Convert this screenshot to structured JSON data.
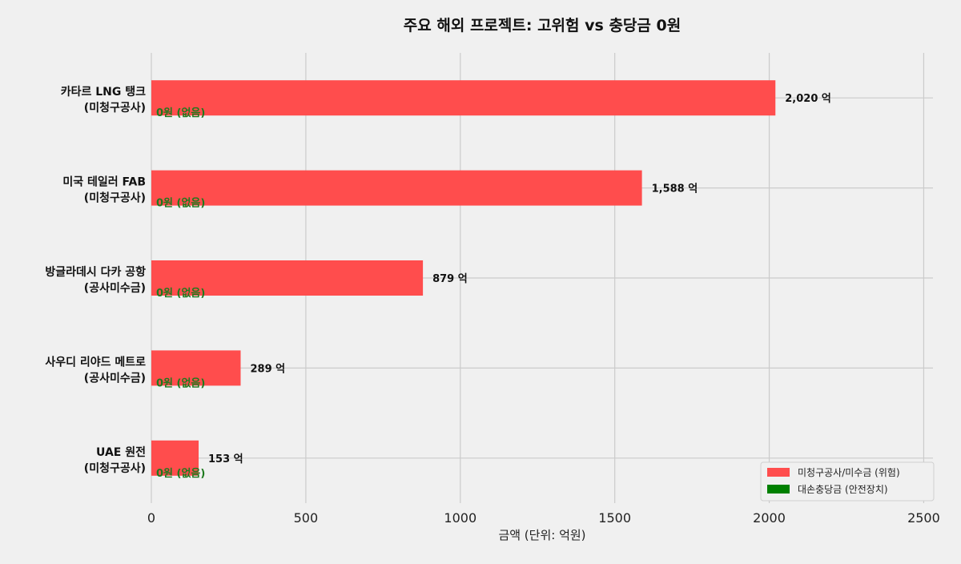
{
  "chart_data": {
    "type": "bar",
    "orientation": "horizontal",
    "title": "주요 해외 프로젝트: 고위험 vs 충당금 0원",
    "xlabel": "금액 (단위: 억원)",
    "ylabel": "",
    "xlim": [
      0,
      2530
    ],
    "xticks": [
      0,
      500,
      1000,
      1500,
      2000,
      2500
    ],
    "grid": true,
    "legend_position": "bottom-right",
    "categories": [
      {
        "name": "카타르 LNG 탱크",
        "sub": "(미청구공사)"
      },
      {
        "name": "미국 테일러 FAB",
        "sub": "(미청구공사)"
      },
      {
        "name": "방글라데시 다카 공항",
        "sub": "(공사미수금)"
      },
      {
        "name": "사우디 리야드 메트로",
        "sub": "(공사미수금)"
      },
      {
        "name": "UAE 원전",
        "sub": "(미청구공사)"
      }
    ],
    "series": [
      {
        "name": "미청구공사/미수금 (위험)",
        "color": "#ff4d4d",
        "values": [
          2020,
          1588,
          879,
          289,
          153
        ],
        "value_labels": [
          "2,020 억",
          "1,588 억",
          "879 억",
          "289 억",
          "153 억"
        ]
      },
      {
        "name": "대손충당금 (안전장치)",
        "color": "#008000",
        "values": [
          0,
          0,
          0,
          0,
          0
        ],
        "value_labels": [
          "0원 (없음)",
          "0원 (없음)",
          "0원 (없음)",
          "0원 (없음)",
          "0원 (없음)"
        ]
      }
    ]
  }
}
